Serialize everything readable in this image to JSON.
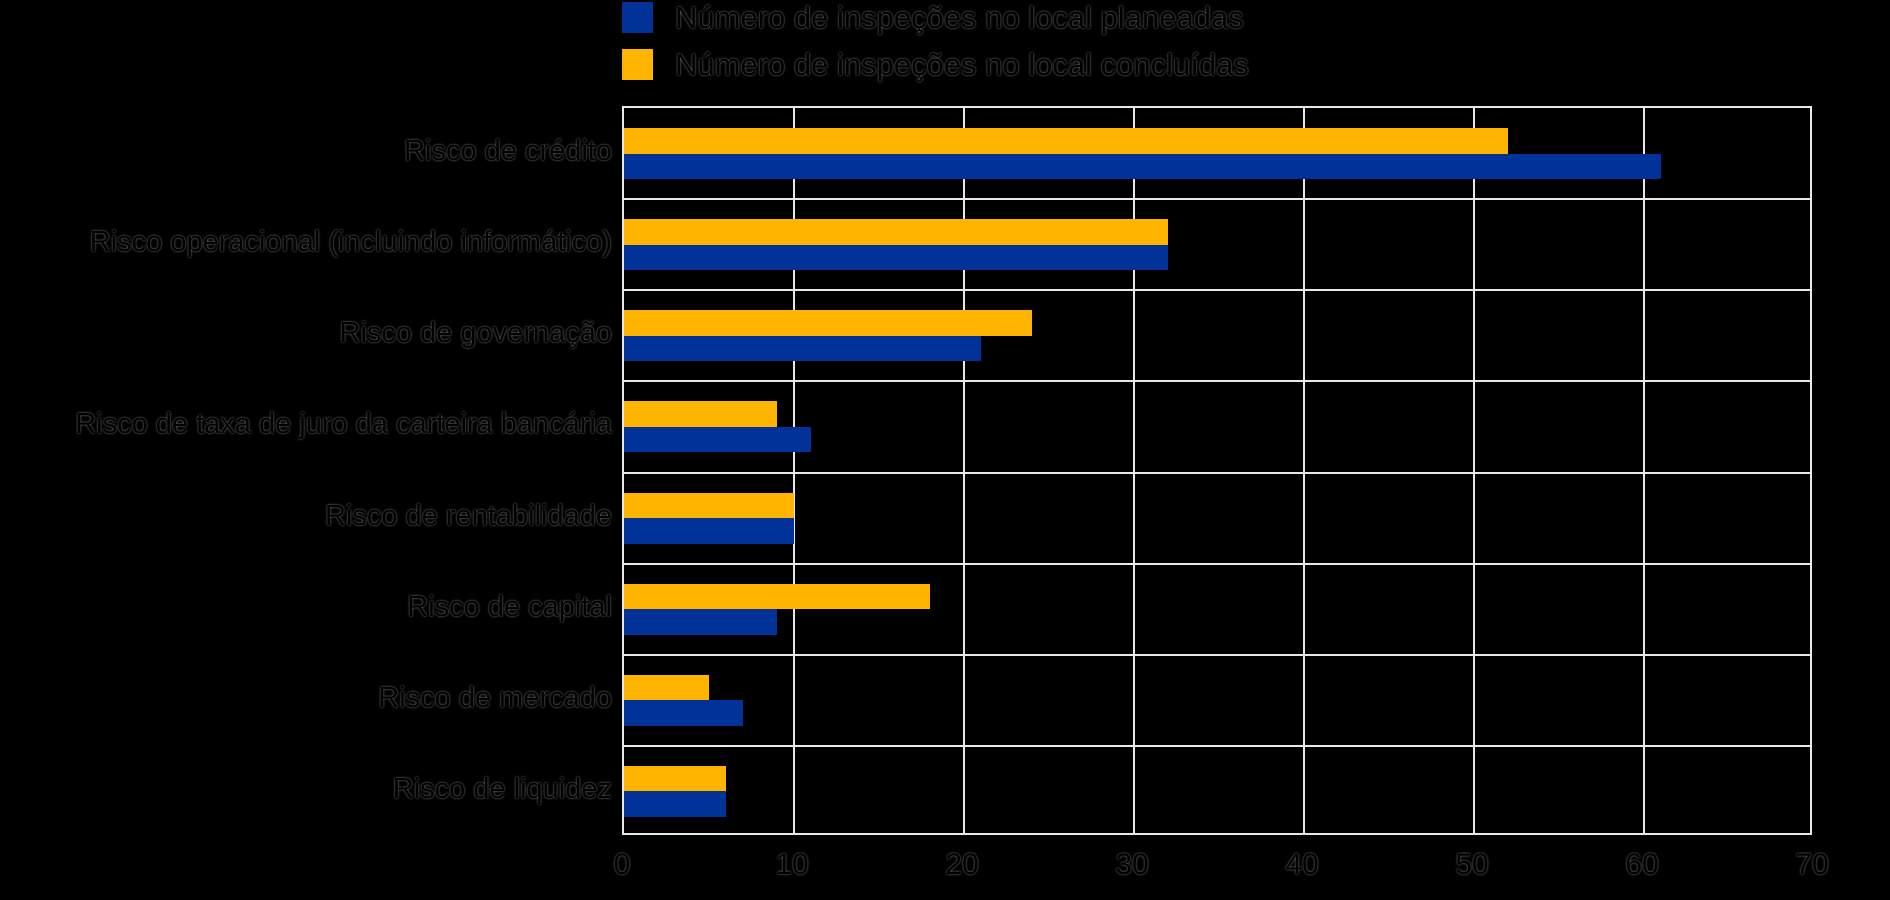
{
  "page": {
    "background_color": "#000000",
    "gridline_color": "#e8e8e8"
  },
  "chart_data": {
    "type": "bar",
    "orientation": "horizontal",
    "title": "",
    "xlabel": "",
    "ylabel": "",
    "categories": [
      "Risco de crédito",
      "Risco operacional (incluindo informático)",
      "Risco de governação",
      "Risco de taxa de juro da carteira bancária",
      "Risco de rentabilidade",
      "Risco de capital",
      "Risco de mercado",
      "Risco de liquidez"
    ],
    "series": [
      {
        "name": "Número de inspeções no local planeadas",
        "color": "#003299",
        "values": [
          61,
          32,
          21,
          11,
          10,
          9,
          7,
          6
        ]
      },
      {
        "name": "Número de inspeções no local concluídas",
        "color": "#FFB400",
        "values": [
          52,
          32,
          24,
          9,
          10,
          18,
          5,
          6
        ]
      }
    ],
    "xlim": [
      0,
      70
    ],
    "xticks": [
      0,
      10,
      20,
      30,
      40,
      50,
      60,
      70
    ],
    "grid": true,
    "legend_position": "top",
    "bar_row_order_top_to_bottom": [
      "Número de inspeções no local concluídas",
      "Número de inspeções no local planeadas"
    ]
  }
}
